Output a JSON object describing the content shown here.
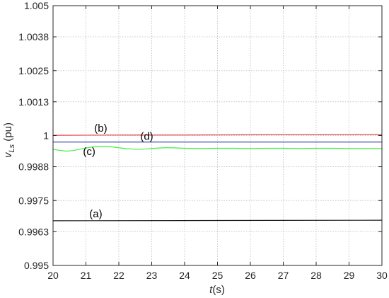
{
  "chart_data": {
    "type": "line",
    "xlabel": {
      "italic": "t",
      "rest": "(s)"
    },
    "ylabel": {
      "main": "v",
      "sub": "Ls",
      "rest": " (pu)"
    },
    "xlim": [
      20,
      30
    ],
    "ylim": [
      0.995,
      1.005
    ],
    "xticks": [
      20,
      21,
      22,
      23,
      24,
      25,
      26,
      27,
      28,
      29,
      30
    ],
    "yticks": [
      0.995,
      0.9963,
      0.9975,
      0.9988,
      1,
      1.0013,
      1.0025,
      1.0038,
      1.005
    ],
    "ytick_labels": [
      "0.995",
      "0.9963",
      "0.9975",
      "0.9988",
      "1",
      "1.0013",
      "1.0025",
      "1.0038",
      "1.005"
    ],
    "grid": true,
    "series": [
      {
        "color": "#e8474f",
        "x": [
          20,
          22,
          24,
          26,
          28,
          30
        ],
        "y": [
          1.00001,
          1.00002,
          1.00002,
          1.00003,
          1.00003,
          1.00004
        ]
      },
      {
        "color": "#2c3aa0",
        "x": [
          20,
          25,
          30
        ],
        "y": [
          0.99975,
          0.99975,
          0.99975
        ]
      },
      {
        "color": "#3cf03c",
        "x": [
          20,
          20.2,
          20.4,
          20.6,
          20.8,
          21,
          21.2,
          21.4,
          21.6,
          21.8,
          22,
          22.2,
          22.4,
          22.6,
          22.8,
          23,
          23.2,
          23.4,
          23.6,
          23.8,
          24,
          24.5,
          25,
          25.5,
          26,
          26.5,
          27,
          27.5,
          28,
          28.5,
          29,
          29.5,
          30
        ],
        "y": [
          0.99947,
          0.99943,
          0.9994,
          0.99942,
          0.99947,
          0.99952,
          0.99956,
          0.99958,
          0.99958,
          0.99956,
          0.99953,
          0.9995,
          0.99948,
          0.99947,
          0.99948,
          0.9995,
          0.99952,
          0.99953,
          0.99953,
          0.99952,
          0.99951,
          0.9995,
          0.99951,
          0.99951,
          0.9995,
          0.99951,
          0.99951,
          0.9995,
          0.99951,
          0.99951,
          0.9995,
          0.9995,
          0.9995
        ]
      },
      {
        "color": "#1a1a1a",
        "x": [
          20,
          25,
          30
        ],
        "y": [
          0.99672,
          0.99673,
          0.99674
        ]
      }
    ],
    "annotations": [
      {
        "text": "(b)",
        "x": 21.45,
        "y": 1.00015
      },
      {
        "text": "(d)",
        "x": 22.85,
        "y": 0.99983
      },
      {
        "text": "(c)",
        "x": 21.1,
        "y": 0.99925
      },
      {
        "text": "(a)",
        "x": 21.3,
        "y": 0.99685
      }
    ]
  }
}
